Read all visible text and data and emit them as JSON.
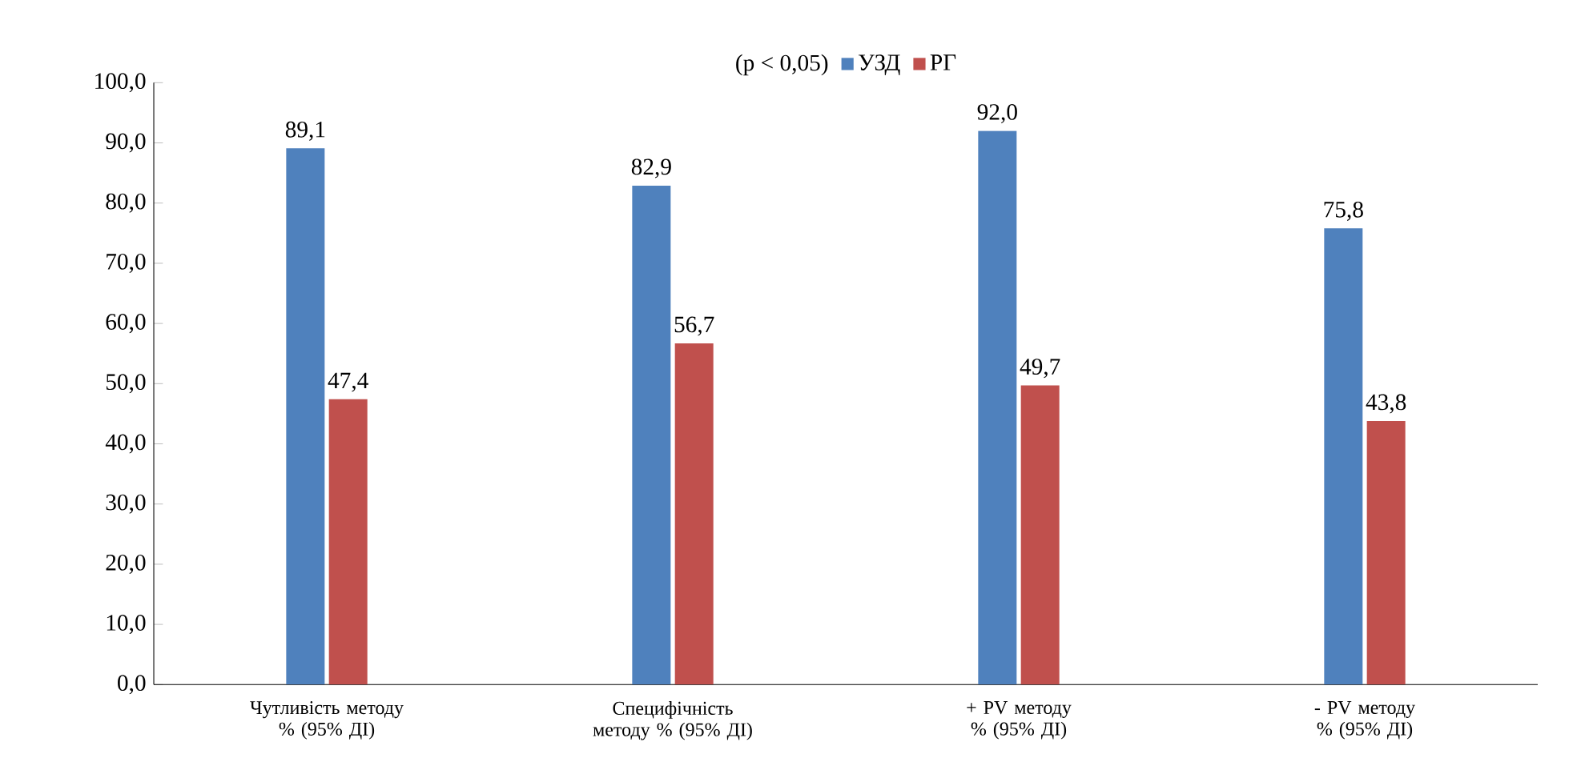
{
  "chart_data": {
    "type": "bar",
    "legend_title": "(p < 0,05)",
    "legend": "top",
    "categories": [
      "Чутливість методу % (95% ДІ)",
      "Специфічність методу % (95% ДІ)",
      "+ PV методу % (95% ДІ)",
      "- PV методу % (95% ДІ)"
    ],
    "series": [
      {
        "name": "УЗД",
        "color": "#4f81bd",
        "values": [
          89.1,
          82.9,
          92.0,
          75.8
        ],
        "value_labels": [
          "89,1",
          "82,9",
          "92,0",
          "75,8"
        ]
      },
      {
        "name": "РГ",
        "color": "#c0504d",
        "values": [
          47.4,
          56.7,
          49.7,
          43.8
        ],
        "value_labels": [
          "47,4",
          "56,7",
          "49,7",
          "43,8"
        ]
      }
    ],
    "ylim": [
      0,
      100
    ],
    "yticks": [
      {
        "value": 0,
        "label": "0,0"
      },
      {
        "value": 10,
        "label": "10,0"
      },
      {
        "value": 20,
        "label": "20,0"
      },
      {
        "value": 30,
        "label": "30,0"
      },
      {
        "value": 40,
        "label": "40,0"
      },
      {
        "value": 50,
        "label": "50,0"
      },
      {
        "value": 60,
        "label": "60,0"
      },
      {
        "value": 70,
        "label": "70,0"
      },
      {
        "value": 80,
        "label": "80,0"
      },
      {
        "value": 90,
        "label": "90,0"
      },
      {
        "value": 100,
        "label": "100,0"
      }
    ]
  }
}
